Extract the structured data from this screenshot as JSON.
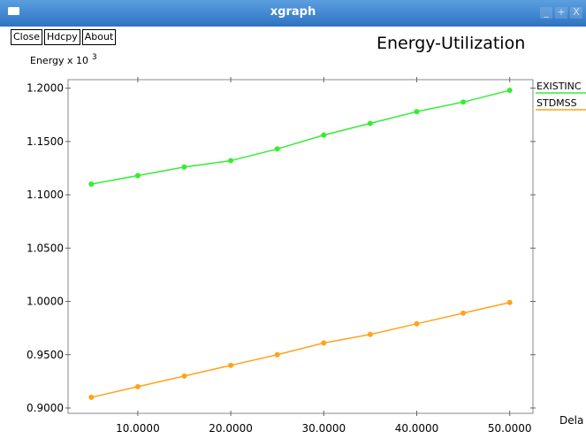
{
  "window": {
    "title": "xgraph",
    "controls": [
      "_",
      "+",
      "X"
    ]
  },
  "toolbar": {
    "close_label": "Close",
    "hdcpy_label": "Hdcpy",
    "about_label": "About"
  },
  "chart_data": {
    "type": "line",
    "title": "Energy-Utilization",
    "ylabel_base": "Energy x 10",
    "ylabel_exp": "3",
    "xlabel": "Dela",
    "xlim": [
      2.5,
      52.5
    ],
    "ylim": [
      0.895,
      1.208
    ],
    "xticks": [
      10,
      20,
      30,
      40,
      50
    ],
    "xtick_labels": [
      "10.0000",
      "20.0000",
      "30.0000",
      "40.0000",
      "50.0000"
    ],
    "yticks": [
      0.9,
      0.95,
      1.0,
      1.05,
      1.1,
      1.15,
      1.2
    ],
    "ytick_labels": [
      "0.9000",
      "0.9500",
      "1.0000",
      "1.0500",
      "1.1000",
      "1.1500",
      "1.2000"
    ],
    "x": [
      5,
      10,
      15,
      20,
      25,
      30,
      35,
      40,
      45,
      50
    ],
    "series": [
      {
        "name": "EXISTINC",
        "color": "#33ee33",
        "values": [
          1.11,
          1.118,
          1.126,
          1.132,
          1.143,
          1.156,
          1.167,
          1.178,
          1.187,
          1.198
        ]
      },
      {
        "name": "STDMSS",
        "color": "#ffa31a",
        "values": [
          0.91,
          0.92,
          0.93,
          0.94,
          0.95,
          0.961,
          0.969,
          0.979,
          0.989,
          0.999
        ]
      }
    ]
  }
}
